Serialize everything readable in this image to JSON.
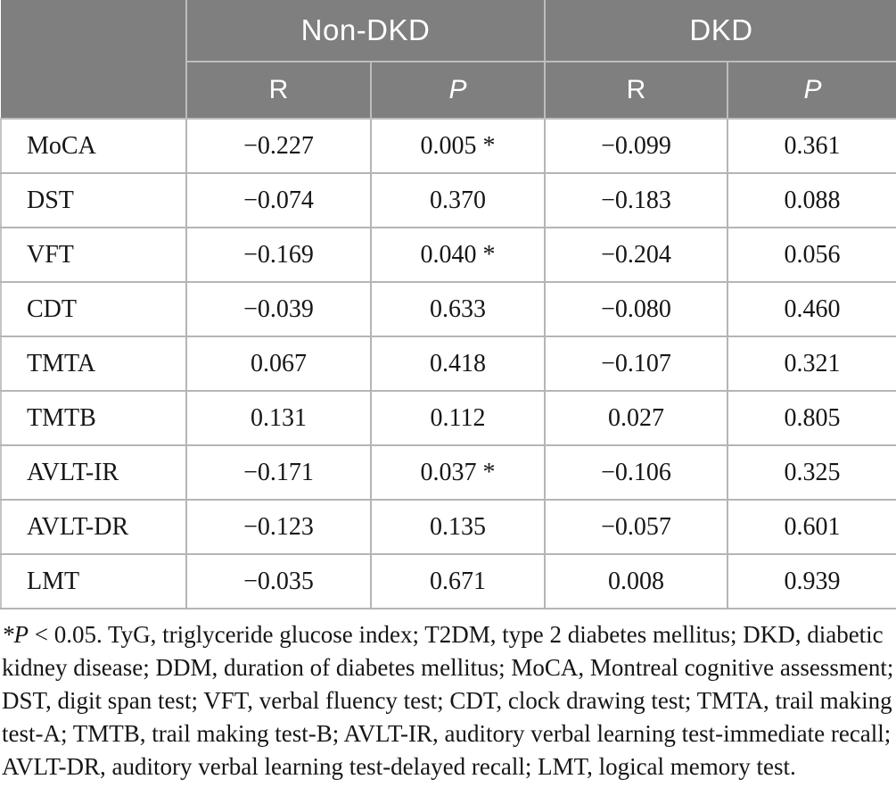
{
  "colors": {
    "header_bg": "#7f7f7f",
    "header_text": "#ffffff",
    "grid_line": "#b5b5b5",
    "header_divider": "#bdbdbd",
    "body_text": "#161616"
  },
  "table": {
    "groups": [
      {
        "label": "Non-DKD"
      },
      {
        "label": "DKD"
      }
    ],
    "sub_headers": [
      {
        "label": "R",
        "italic": false
      },
      {
        "label": "P",
        "italic": true
      },
      {
        "label": "R",
        "italic": false
      },
      {
        "label": "P",
        "italic": true
      }
    ],
    "rows": [
      {
        "label": "MoCA",
        "values": [
          "−0.227",
          "0.005 *",
          "−0.099",
          "0.361"
        ]
      },
      {
        "label": "DST",
        "values": [
          "−0.074",
          "0.370",
          "−0.183",
          "0.088"
        ]
      },
      {
        "label": "VFT",
        "values": [
          "−0.169",
          "0.040 *",
          "−0.204",
          "0.056"
        ]
      },
      {
        "label": "CDT",
        "values": [
          "−0.039",
          "0.633",
          "−0.080",
          "0.460"
        ]
      },
      {
        "label": "TMTA",
        "values": [
          "0.067",
          "0.418",
          "−0.107",
          "0.321"
        ]
      },
      {
        "label": "TMTB",
        "values": [
          "0.131",
          "0.112",
          "0.027",
          "0.805"
        ]
      },
      {
        "label": "AVLT-IR",
        "values": [
          "−0.171",
          "0.037 *",
          "−0.106",
          "0.325"
        ]
      },
      {
        "label": "AVLT-DR",
        "values": [
          "−0.123",
          "0.135",
          "−0.057",
          "0.601"
        ]
      },
      {
        "label": "LMT",
        "values": [
          "−0.035",
          "0.671",
          "0.008",
          "0.939"
        ]
      }
    ]
  },
  "footnote": {
    "star_p": "*P",
    "line1_rest": " < 0.05. TyG, triglyceride glucose index; T2DM, type 2 diabetes mellitus; DKD, diabetic",
    "lines": [
      "kidney disease; DDM, duration of diabetes mellitus; MoCA, Montreal cognitive assessment;",
      "DST, digit span test; VFT, verbal fluency test; CDT, clock drawing test; TMTA, trail making",
      "test-A; TMTB, trail making test-B; AVLT-IR, auditory verbal learning test-immediate recall;",
      "AVLT-DR, auditory verbal learning test-delayed recall; LMT, logical memory test."
    ]
  }
}
